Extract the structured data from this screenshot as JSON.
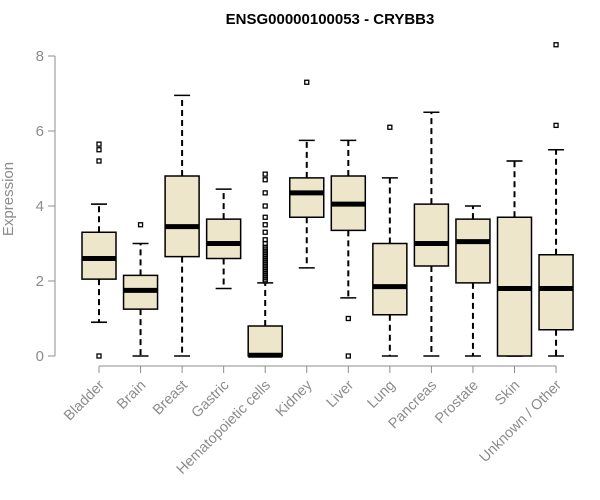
{
  "chart_data": {
    "type": "box",
    "title": "ENSG00000100053 - CRYBB3",
    "xlabel": "",
    "ylabel": "Expression",
    "ylim": [
      0,
      8
    ],
    "yticks": [
      "0",
      "2",
      "4",
      "6",
      "8"
    ],
    "box_fill": "#ede6cb",
    "categories": [
      "Bladder",
      "Brain",
      "Breast",
      "Gastric",
      "Hematopoietic cells",
      "Kidney",
      "Liver",
      "Lung",
      "Pancreas",
      "Prostate",
      "Skin",
      "Unknown / Other"
    ],
    "boxes": [
      {
        "name": "Bladder",
        "min": 0.9,
        "q1": 2.05,
        "median": 2.6,
        "q3": 3.3,
        "max": 4.05,
        "outliers": [
          0.0,
          5.2,
          5.5,
          5.65
        ]
      },
      {
        "name": "Brain",
        "min": 0.0,
        "q1": 1.25,
        "median": 1.75,
        "q3": 2.15,
        "max": 3.0,
        "outliers": [
          3.5
        ]
      },
      {
        "name": "Breast",
        "min": 0.0,
        "q1": 2.65,
        "median": 3.45,
        "q3": 4.8,
        "max": 6.95,
        "outliers": []
      },
      {
        "name": "Gastric",
        "min": 1.8,
        "q1": 2.6,
        "median": 3.0,
        "q3": 3.65,
        "max": 4.45,
        "outliers": []
      },
      {
        "name": "Hematopoietic cells",
        "min": 0.0,
        "q1": 0.0,
        "median": 0.02,
        "q3": 0.8,
        "max": 1.95,
        "outliers": [
          2.0,
          2.05,
          2.1,
          2.15,
          2.2,
          2.25,
          2.3,
          2.35,
          2.4,
          2.45,
          2.5,
          2.55,
          2.6,
          2.65,
          2.7,
          2.75,
          2.8,
          2.85,
          2.9,
          3.0,
          3.1,
          3.3,
          3.5,
          3.7,
          4.0,
          4.35,
          4.7,
          4.85
        ]
      },
      {
        "name": "Kidney",
        "min": 2.35,
        "q1": 3.7,
        "median": 4.35,
        "q3": 4.75,
        "max": 5.75,
        "outliers": [
          7.3
        ]
      },
      {
        "name": "Liver",
        "min": 1.55,
        "q1": 3.35,
        "median": 4.05,
        "q3": 4.8,
        "max": 5.75,
        "outliers": [
          0.0,
          1.0
        ]
      },
      {
        "name": "Lung",
        "min": 0.0,
        "q1": 1.1,
        "median": 1.85,
        "q3": 3.0,
        "max": 4.75,
        "outliers": [
          6.1
        ]
      },
      {
        "name": "Pancreas",
        "min": 0.0,
        "q1": 2.4,
        "median": 3.0,
        "q3": 4.05,
        "max": 6.5,
        "outliers": []
      },
      {
        "name": "Prostate",
        "min": 0.0,
        "q1": 1.95,
        "median": 3.05,
        "q3": 3.65,
        "max": 4.0,
        "outliers": []
      },
      {
        "name": "Skin",
        "min": 0.0,
        "q1": 0.0,
        "median": 1.8,
        "q3": 3.7,
        "max": 5.2,
        "outliers": []
      },
      {
        "name": "Unknown / Other",
        "min": 0.0,
        "q1": 0.7,
        "median": 1.8,
        "q3": 2.7,
        "max": 5.5,
        "outliers": [
          6.15,
          8.3
        ]
      }
    ]
  }
}
